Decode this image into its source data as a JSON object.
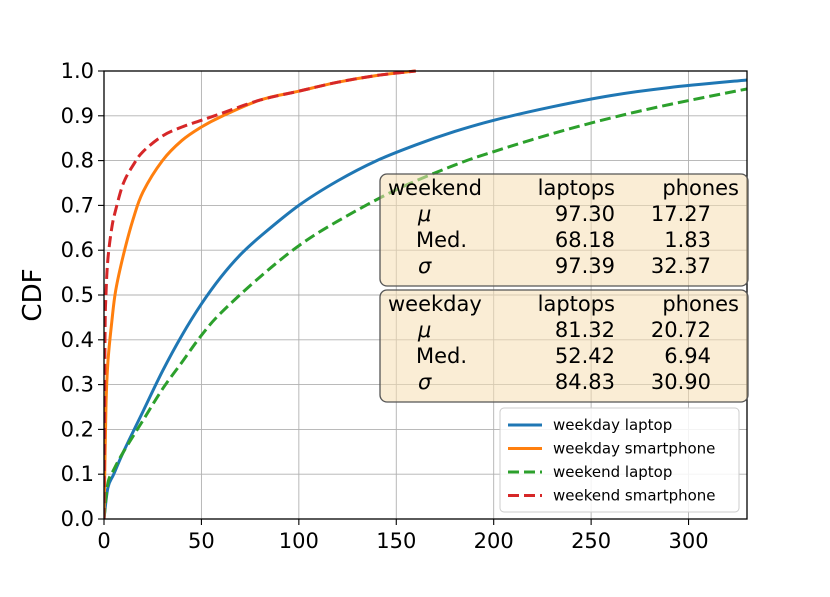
{
  "chart_data": {
    "type": "line",
    "title": "",
    "xlabel": "",
    "ylabel": "CDF",
    "xlim": [
      0,
      330
    ],
    "ylim": [
      0,
      1.0
    ],
    "xticks": [
      0,
      50,
      100,
      150,
      200,
      250,
      300
    ],
    "yticks": [
      "0.0",
      "0.1",
      "0.2",
      "0.3",
      "0.4",
      "0.5",
      "0.6",
      "0.7",
      "0.8",
      "0.9",
      "1.0"
    ],
    "grid": true,
    "legend_position": "lower-right",
    "series": [
      {
        "name": "weekday laptop",
        "color": "#1f77b4",
        "dash": "solid",
        "x": [
          0,
          2,
          5,
          10,
          20,
          30,
          40,
          50,
          60,
          70,
          80,
          100,
          120,
          140,
          160,
          180,
          200,
          230,
          260,
          290,
          330
        ],
        "y": [
          0.0,
          0.07,
          0.1,
          0.15,
          0.24,
          0.33,
          0.41,
          0.48,
          0.54,
          0.59,
          0.63,
          0.7,
          0.755,
          0.8,
          0.835,
          0.865,
          0.89,
          0.92,
          0.945,
          0.963,
          0.98
        ]
      },
      {
        "name": "weekday smartphone",
        "color": "#ff7f0e",
        "dash": "solid",
        "x": [
          0,
          1,
          2,
          4,
          6,
          10,
          15,
          20,
          30,
          40,
          50,
          60,
          80,
          100,
          120,
          140,
          160
        ],
        "y": [
          0.0,
          0.25,
          0.35,
          0.44,
          0.51,
          0.59,
          0.67,
          0.73,
          0.8,
          0.845,
          0.875,
          0.898,
          0.935,
          0.955,
          0.975,
          0.99,
          1.0
        ]
      },
      {
        "name": "weekend laptop",
        "color": "#2ca02c",
        "dash": "dashed",
        "x": [
          0,
          2,
          5,
          10,
          20,
          30,
          40,
          50,
          60,
          80,
          100,
          120,
          150,
          180,
          200,
          230,
          260,
          290,
          330
        ],
        "y": [
          0.0,
          0.08,
          0.11,
          0.15,
          0.22,
          0.29,
          0.35,
          0.41,
          0.46,
          0.54,
          0.61,
          0.665,
          0.735,
          0.79,
          0.82,
          0.86,
          0.895,
          0.925,
          0.96
        ]
      },
      {
        "name": "weekend smartphone",
        "color": "#d62728",
        "dash": "dashed",
        "x": [
          0,
          0.5,
          1,
          2,
          4,
          6,
          10,
          15,
          20,
          30,
          40,
          50,
          60,
          80,
          100,
          120,
          140,
          160
        ],
        "y": [
          0.0,
          0.4,
          0.5,
          0.58,
          0.65,
          0.69,
          0.75,
          0.79,
          0.82,
          0.855,
          0.875,
          0.89,
          0.905,
          0.935,
          0.955,
          0.975,
          0.99,
          1.0
        ]
      }
    ],
    "stat_boxes": [
      {
        "header": [
          "weekend",
          "laptops",
          "phones"
        ],
        "rows": [
          [
            "μ",
            "97.30",
            "17.27"
          ],
          [
            "Med.",
            "68.18",
            "1.83"
          ],
          [
            "σ",
            "97.39",
            "32.37"
          ]
        ]
      },
      {
        "header": [
          "weekday",
          "laptops",
          "phones"
        ],
        "rows": [
          [
            "μ",
            "81.32",
            "20.72"
          ],
          [
            "Med.",
            "52.42",
            "6.94"
          ],
          [
            "σ",
            "84.83",
            "30.90"
          ]
        ]
      }
    ]
  }
}
